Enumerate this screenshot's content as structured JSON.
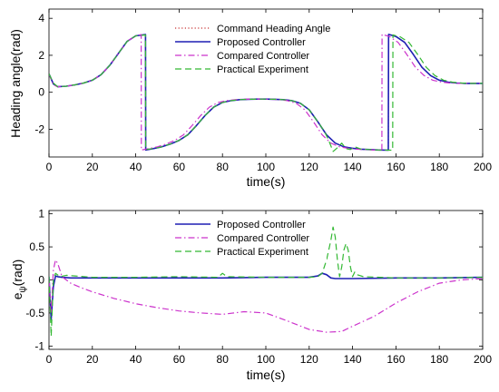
{
  "colors": {
    "command": "#c83232",
    "proposed": "#1f1fb4",
    "compared": "#cc33cc",
    "experiment": "#33b833"
  },
  "chart_data": [
    {
      "type": "line",
      "xlabel": "time(s)",
      "ylabel": "Heading angle(rad)",
      "xlim": [
        0,
        200
      ],
      "ylim": [
        -3.5,
        4.5
      ],
      "xticks": [
        "0",
        "20",
        "40",
        "60",
        "80",
        "100",
        "120",
        "140",
        "160",
        "180",
        "200"
      ],
      "yticks": [
        "4",
        "2",
        "0",
        "-2"
      ],
      "legend_position": "top-center",
      "grid": false,
      "series": [
        {
          "name": "Command Heading Angle",
          "style": "dotted",
          "x": [
            0,
            2,
            4,
            8,
            12,
            16,
            20,
            24,
            28,
            32,
            36,
            40,
            44.5,
            44.6,
            48,
            52,
            56,
            60,
            64,
            68,
            72,
            76,
            80,
            84,
            88,
            92,
            96,
            100,
            104,
            108,
            112,
            116,
            120,
            124,
            128,
            132,
            136,
            140,
            144,
            148,
            152,
            156.5,
            156.6,
            160,
            164,
            168,
            172,
            176,
            180,
            184,
            188,
            192,
            196,
            200
          ],
          "y": [
            1.0,
            0.45,
            0.3,
            0.33,
            0.4,
            0.5,
            0.65,
            0.95,
            1.45,
            2.1,
            2.75,
            3.05,
            3.12,
            -3.12,
            -3.05,
            -2.95,
            -2.8,
            -2.6,
            -2.3,
            -1.8,
            -1.25,
            -0.8,
            -0.55,
            -0.45,
            -0.4,
            -0.38,
            -0.37,
            -0.37,
            -0.38,
            -0.4,
            -0.45,
            -0.6,
            -0.95,
            -1.6,
            -2.3,
            -2.75,
            -2.95,
            -3.03,
            -3.08,
            -3.1,
            -3.12,
            -3.13,
            3.13,
            3.02,
            2.7,
            2.05,
            1.35,
            0.9,
            0.65,
            0.55,
            0.5,
            0.48,
            0.48,
            0.48
          ]
        },
        {
          "name": "Proposed Controller",
          "style": "solid",
          "x": [
            0,
            2,
            4,
            8,
            12,
            16,
            20,
            24,
            28,
            32,
            36,
            40,
            44.5,
            44.6,
            48,
            52,
            56,
            60,
            64,
            68,
            72,
            76,
            80,
            84,
            88,
            92,
            96,
            100,
            104,
            108,
            112,
            116,
            120,
            124,
            128,
            132,
            136,
            140,
            144,
            148,
            152,
            156.5,
            156.6,
            160,
            164,
            168,
            172,
            176,
            180,
            184,
            188,
            192,
            196,
            200
          ],
          "y": [
            1.0,
            0.45,
            0.3,
            0.33,
            0.4,
            0.5,
            0.65,
            0.95,
            1.45,
            2.1,
            2.75,
            3.05,
            3.12,
            -3.12,
            -3.05,
            -2.95,
            -2.8,
            -2.6,
            -2.3,
            -1.8,
            -1.25,
            -0.8,
            -0.55,
            -0.45,
            -0.4,
            -0.38,
            -0.37,
            -0.37,
            -0.38,
            -0.4,
            -0.45,
            -0.6,
            -0.95,
            -1.6,
            -2.3,
            -2.75,
            -2.95,
            -3.03,
            -3.08,
            -3.1,
            -3.12,
            -3.13,
            3.13,
            3.02,
            2.7,
            2.05,
            1.35,
            0.9,
            0.65,
            0.55,
            0.5,
            0.48,
            0.48,
            0.48
          ]
        },
        {
          "name": "Compared Controller",
          "style": "dashdot",
          "x": [
            0,
            2,
            4,
            8,
            12,
            16,
            20,
            24,
            28,
            32,
            36,
            40,
            42.5,
            42.6,
            46,
            50,
            54,
            58,
            62,
            66,
            70,
            74,
            78,
            82,
            86,
            90,
            94,
            98,
            102,
            106,
            110,
            114,
            118,
            122,
            126,
            130,
            134,
            138,
            142,
            146,
            150,
            153.5,
            153.6,
            157,
            161,
            165,
            169,
            173,
            177,
            181,
            185,
            189,
            193,
            200
          ],
          "y": [
            1.0,
            0.4,
            0.3,
            0.33,
            0.4,
            0.5,
            0.65,
            0.95,
            1.45,
            2.1,
            2.75,
            3.05,
            3.12,
            -3.12,
            -3.05,
            -2.95,
            -2.8,
            -2.6,
            -2.3,
            -1.8,
            -1.25,
            -0.8,
            -0.55,
            -0.45,
            -0.4,
            -0.38,
            -0.37,
            -0.37,
            -0.38,
            -0.4,
            -0.45,
            -0.6,
            -0.95,
            -1.6,
            -2.3,
            -2.75,
            -2.95,
            -3.03,
            -3.08,
            -3.1,
            -3.12,
            -3.13,
            3.13,
            3.02,
            2.7,
            2.05,
            1.35,
            0.9,
            0.65,
            0.55,
            0.5,
            0.48,
            0.48,
            0.48
          ]
        },
        {
          "name": "Practical Experiment",
          "style": "dashed",
          "x": [
            0,
            2,
            4,
            8,
            12,
            16,
            20,
            24,
            28,
            32,
            36,
            40,
            44.5,
            44.6,
            48,
            52,
            56,
            60,
            64,
            68,
            72,
            76,
            80,
            84,
            88,
            92,
            96,
            100,
            104,
            108,
            112,
            116,
            120,
            124,
            127,
            129,
            131,
            133,
            135,
            137,
            139,
            141,
            144,
            148,
            152,
            158.5,
            158.6,
            162,
            166,
            170,
            174,
            178,
            182,
            186,
            190,
            194,
            200
          ],
          "y": [
            1.0,
            0.5,
            0.3,
            0.33,
            0.4,
            0.5,
            0.65,
            0.95,
            1.45,
            2.1,
            2.75,
            3.05,
            3.1,
            -3.1,
            -3.05,
            -2.95,
            -2.8,
            -2.6,
            -2.3,
            -1.8,
            -1.25,
            -0.8,
            -0.55,
            -0.45,
            -0.4,
            -0.38,
            -0.37,
            -0.37,
            -0.38,
            -0.4,
            -0.45,
            -0.6,
            -0.95,
            -1.6,
            -2.1,
            -2.6,
            -3.2,
            -3.0,
            -2.75,
            -3.05,
            -3.1,
            -2.95,
            -3.08,
            -3.1,
            -3.12,
            -3.13,
            3.1,
            3.0,
            2.7,
            2.05,
            1.35,
            0.9,
            0.65,
            0.55,
            0.5,
            0.48,
            0.48
          ]
        }
      ]
    },
    {
      "type": "line",
      "xlabel": "time(s)",
      "ylabel": "e_ψ(rad)",
      "xlim": [
        0,
        200
      ],
      "ylim": [
        -1.05,
        1.05
      ],
      "xticks": [
        "0",
        "20",
        "40",
        "60",
        "80",
        "100",
        "120",
        "140",
        "160",
        "180",
        "200"
      ],
      "yticks": [
        "1",
        "0.5",
        "0",
        "-0.5",
        "-1"
      ],
      "legend_position": "top-center",
      "grid": false,
      "series": [
        {
          "name": "Proposed Controller",
          "style": "solid",
          "x": [
            0,
            1,
            2,
            3,
            4,
            6,
            10,
            20,
            40,
            60,
            80,
            100,
            120,
            124,
            126,
            128,
            130,
            132,
            140,
            160,
            180,
            200
          ],
          "y": [
            0.05,
            -0.6,
            -0.1,
            0.06,
            0.05,
            0.04,
            0.03,
            0.03,
            0.03,
            0.03,
            0.03,
            0.04,
            0.04,
            0.06,
            0.1,
            0.08,
            0.03,
            0.02,
            0.02,
            0.03,
            0.03,
            0.04
          ]
        },
        {
          "name": "Compared Controller",
          "style": "dashdot",
          "x": [
            0,
            1,
            2,
            3,
            4,
            5,
            6,
            8,
            10,
            15,
            20,
            30,
            40,
            50,
            60,
            70,
            80,
            90,
            100,
            110,
            120,
            128,
            135,
            140,
            150,
            160,
            170,
            180,
            190,
            200
          ],
          "y": [
            0.0,
            -0.5,
            0.15,
            0.3,
            0.25,
            0.15,
            0.05,
            0.0,
            -0.05,
            -0.12,
            -0.18,
            -0.28,
            -0.36,
            -0.42,
            -0.47,
            -0.5,
            -0.52,
            -0.48,
            -0.5,
            -0.62,
            -0.75,
            -0.79,
            -0.78,
            -0.7,
            -0.55,
            -0.35,
            -0.18,
            -0.05,
            0.0,
            0.02
          ]
        },
        {
          "name": "Practical Experiment",
          "style": "dashed",
          "x": [
            0,
            1,
            2,
            3,
            5,
            8,
            12,
            20,
            40,
            60,
            78,
            80,
            82,
            100,
            120,
            124,
            126,
            128,
            130,
            131,
            132,
            133,
            134,
            135,
            136,
            137,
            138,
            139,
            140,
            141,
            142,
            145,
            160,
            180,
            200
          ],
          "y": [
            0.05,
            -0.85,
            0.0,
            0.1,
            0.05,
            0.07,
            0.06,
            0.04,
            0.04,
            0.05,
            0.04,
            0.1,
            0.05,
            0.04,
            0.04,
            0.05,
            0.1,
            0.3,
            0.6,
            0.8,
            0.65,
            0.3,
            0.05,
            0.2,
            0.45,
            0.55,
            0.45,
            0.2,
            0.05,
            0.12,
            0.08,
            0.05,
            0.03,
            0.03,
            0.04
          ]
        }
      ]
    }
  ]
}
